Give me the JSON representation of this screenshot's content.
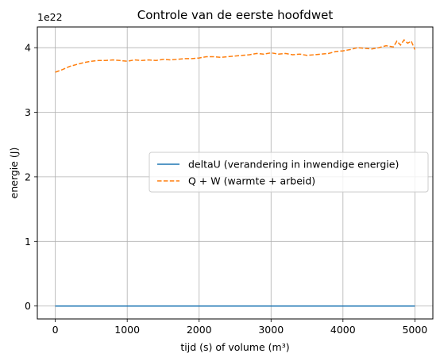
{
  "chart_data": {
    "type": "line",
    "title": "Controle van de eerste hoofdwet",
    "xlabel": "tijd (s) of volume (m³)",
    "ylabel": "energie (J)",
    "y_scale_label": "1e22",
    "y_multiplier": 1e+22,
    "xlim": [
      -250,
      5250
    ],
    "ylim": [
      -0.2,
      4.32
    ],
    "xticks": [
      0,
      1000,
      2000,
      3000,
      4000,
      5000
    ],
    "xtick_labels": [
      "0",
      "1000",
      "2000",
      "3000",
      "4000",
      "5000"
    ],
    "yticks": [
      0,
      1,
      2,
      3,
      4
    ],
    "ytick_labels": [
      "0",
      "1",
      "2",
      "3",
      "4"
    ],
    "grid": true,
    "legend_position": "center-right",
    "series": [
      {
        "name": "deltaU (verandering in inwendige energie)",
        "style": "solid",
        "color": "#1f77b4",
        "x": [
          0,
          5000
        ],
        "y": [
          0,
          0
        ]
      },
      {
        "name": "Q + W (warmte + arbeid)",
        "style": "dashed",
        "color": "#ff7f0e",
        "x": [
          0,
          100,
          200,
          300,
          400,
          500,
          600,
          700,
          800,
          900,
          1000,
          1100,
          1200,
          1300,
          1400,
          1500,
          1600,
          1700,
          1800,
          1900,
          2000,
          2100,
          2200,
          2300,
          2400,
          2500,
          2600,
          2700,
          2800,
          2900,
          3000,
          3100,
          3200,
          3300,
          3400,
          3500,
          3600,
          3700,
          3800,
          3900,
          4000,
          4100,
          4200,
          4300,
          4400,
          4500,
          4600,
          4700,
          4750,
          4800,
          4850,
          4900,
          4950,
          5000
        ],
        "y": [
          3.62,
          3.66,
          3.71,
          3.74,
          3.77,
          3.79,
          3.8,
          3.8,
          3.81,
          3.8,
          3.79,
          3.81,
          3.8,
          3.81,
          3.8,
          3.82,
          3.81,
          3.82,
          3.83,
          3.83,
          3.84,
          3.86,
          3.86,
          3.85,
          3.86,
          3.87,
          3.88,
          3.89,
          3.91,
          3.9,
          3.92,
          3.9,
          3.91,
          3.89,
          3.9,
          3.88,
          3.89,
          3.9,
          3.91,
          3.94,
          3.95,
          3.97,
          4.0,
          3.99,
          3.98,
          4.0,
          4.03,
          4.01,
          4.1,
          4.04,
          4.12,
          4.07,
          4.1,
          3.97
        ]
      }
    ]
  }
}
